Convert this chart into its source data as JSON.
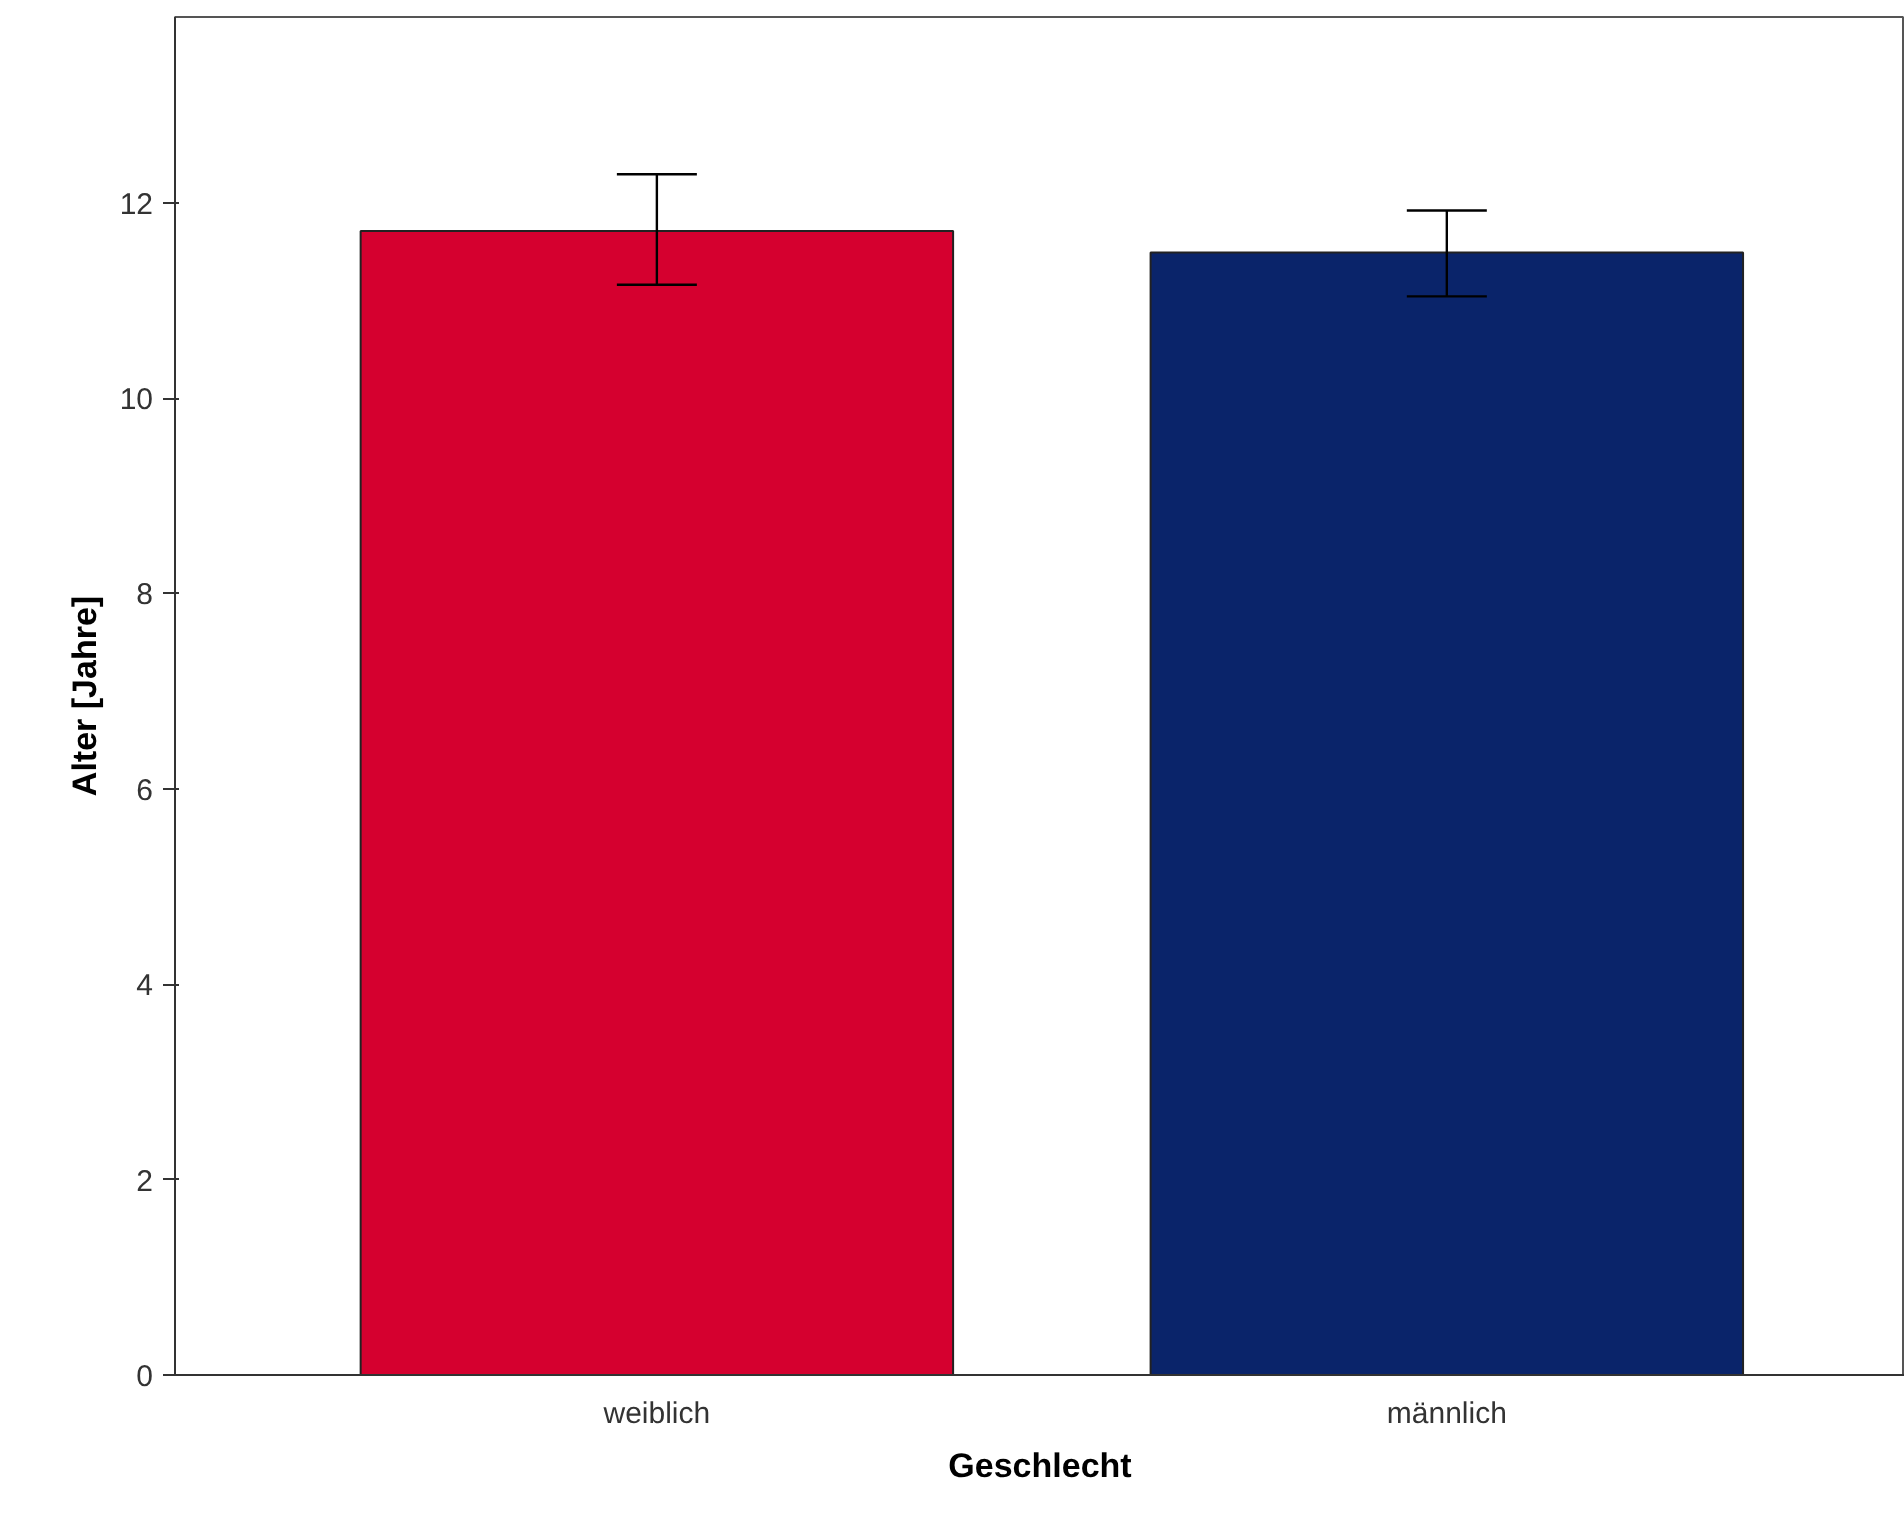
{
  "chart_data": {
    "type": "bar",
    "xlabel": "Geschlecht",
    "ylabel": "Alter [Jahre]",
    "categories": [
      "weiblich",
      "männlich"
    ],
    "values": [
      11.71,
      11.49
    ],
    "colors": [
      "#d5002f",
      "#0a246a"
    ],
    "errors": [
      [
        11.16,
        12.29
      ],
      [
        11.04,
        11.92
      ]
    ],
    "ylim": [
      0,
      13.9
    ],
    "yticks": [
      0,
      2,
      4,
      6,
      8,
      10,
      12
    ],
    "grid": false
  }
}
